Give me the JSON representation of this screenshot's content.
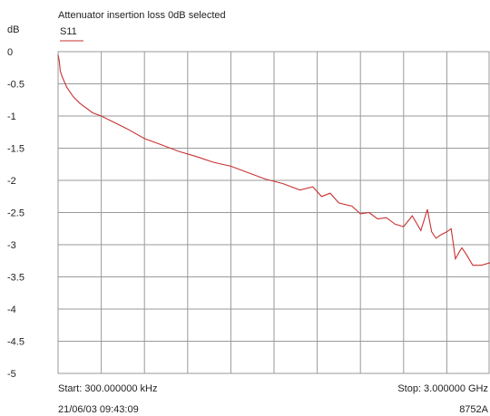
{
  "chart_data": {
    "type": "line",
    "title": "Attenuator insertion loss 0dB selected",
    "ylabel": "dB",
    "ylim": [
      -5,
      0
    ],
    "yticks": [
      "0",
      "-0.5",
      "-1",
      "-1.5",
      "-2",
      "-2.5",
      "-3",
      "-3.5",
      "-4",
      "-4.5",
      "-5"
    ],
    "xlim": [
      0,
      10
    ],
    "x_divisions": 10,
    "grid": true,
    "legend_position": "top-left",
    "series": [
      {
        "name": "S11",
        "color": "#c83232",
        "x": [
          0.0,
          0.03,
          0.05,
          0.1,
          0.2,
          0.35,
          0.5,
          0.8,
          1.0,
          1.3,
          1.6,
          2.0,
          2.4,
          2.8,
          3.2,
          3.6,
          4.0,
          4.4,
          4.8,
          5.2,
          5.6,
          5.9,
          6.1,
          6.3,
          6.5,
          6.8,
          7.0,
          7.2,
          7.4,
          7.6,
          7.8,
          8.0,
          8.2,
          8.4,
          8.55,
          8.65,
          8.75,
          8.85,
          9.0,
          9.1,
          9.2,
          9.3,
          9.35,
          9.45,
          9.6,
          9.8,
          10.0
        ],
        "values": [
          -0.05,
          -0.15,
          -0.3,
          -0.4,
          -0.55,
          -0.7,
          -0.8,
          -0.95,
          -1.0,
          -1.1,
          -1.2,
          -1.35,
          -1.45,
          -1.55,
          -1.63,
          -1.72,
          -1.78,
          -1.88,
          -1.98,
          -2.05,
          -2.15,
          -2.1,
          -2.25,
          -2.2,
          -2.35,
          -2.4,
          -2.52,
          -2.5,
          -2.6,
          -2.58,
          -2.68,
          -2.72,
          -2.55,
          -2.78,
          -2.45,
          -2.8,
          -2.9,
          -2.85,
          -2.8,
          -2.75,
          -3.22,
          -3.1,
          -3.05,
          -3.15,
          -3.32,
          -3.32,
          -3.28
        ]
      }
    ]
  },
  "footer": {
    "start": "Start: 300.000000 kHz",
    "stop": "Stop: 3.000000 GHz",
    "timestamp": "21/06/03 09:43:09",
    "instrument": "8752A"
  }
}
